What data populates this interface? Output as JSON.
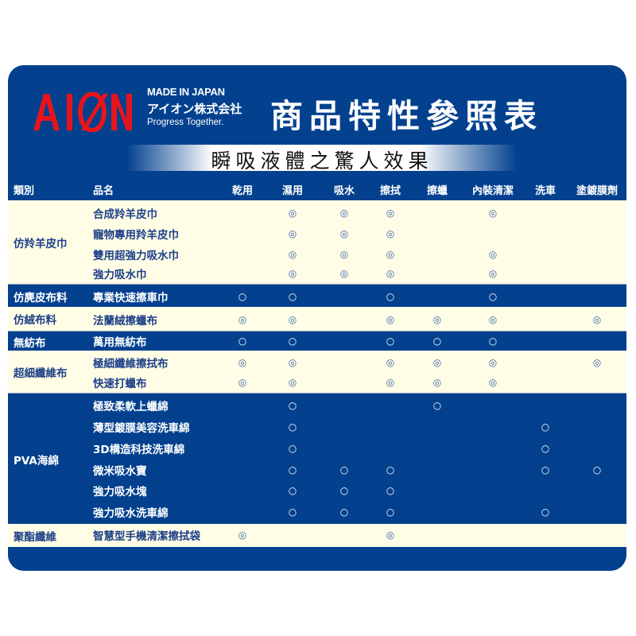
{
  "header": {
    "logo_text": "AION",
    "made_in": "MADE IN JAPAN",
    "company": "アイオン株式会社",
    "slogan": "Progress Together.",
    "title": "商品特性參照表",
    "subtitle": "瞬吸液體之驚人效果"
  },
  "colors": {
    "brand_red": "#e8141c",
    "panel_blue": "#03418f",
    "cream": "#fffde6"
  },
  "table": {
    "headers": {
      "category": "類別",
      "name": "品名",
      "features": [
        "乾用",
        "濕用",
        "吸水",
        "擦拭",
        "擦蠟",
        "內裝清潔",
        "洗車",
        "塗鍍膜劑"
      ]
    },
    "groups": [
      {
        "category": "仿羚羊皮巾",
        "rows": [
          {
            "name": "合成羚羊皮巾",
            "marks": [
              "",
              "◎",
              "◎",
              "◎",
              "",
              "◎",
              "",
              ""
            ]
          },
          {
            "name": "寵物專用羚羊皮巾",
            "marks": [
              "",
              "◎",
              "◎",
              "◎",
              "",
              "",
              "",
              ""
            ]
          },
          {
            "name": "雙用超強力吸水巾",
            "marks": [
              "",
              "◎",
              "◎",
              "◎",
              "",
              "◎",
              "",
              ""
            ]
          },
          {
            "name": "強力吸水巾",
            "marks": [
              "",
              "◎",
              "◎",
              "◎",
              "",
              "◎",
              "",
              ""
            ]
          }
        ]
      },
      {
        "category": "仿麂皮布料",
        "rows": [
          {
            "name": "專業快速擦車巾",
            "marks": [
              "○",
              "○",
              "",
              "○",
              "",
              "○",
              "",
              ""
            ]
          }
        ]
      },
      {
        "category": "仿絨布料",
        "rows": [
          {
            "name": "法蘭絨擦蠟布",
            "marks": [
              "◎",
              "◎",
              "",
              "◎",
              "◎",
              "◎",
              "",
              "◎"
            ]
          }
        ]
      },
      {
        "category": "無紡布",
        "rows": [
          {
            "name": "萬用無紡布",
            "marks": [
              "○",
              "○",
              "",
              "○",
              "○",
              "○",
              "",
              ""
            ]
          }
        ]
      },
      {
        "category": "超細纖維布",
        "rows": [
          {
            "name": "極細纖維擦拭布",
            "marks": [
              "◎",
              "◎",
              "",
              "◎",
              "◎",
              "◎",
              "",
              "◎"
            ]
          },
          {
            "name": "快速打蠟布",
            "marks": [
              "◎",
              "◎",
              "",
              "◎",
              "◎",
              "◎",
              "",
              ""
            ]
          }
        ]
      },
      {
        "category": "PVA海綿",
        "rows": [
          {
            "name": "極致柔軟上蠟綿",
            "marks": [
              "",
              "○",
              "",
              "",
              "○",
              "",
              "",
              ""
            ]
          },
          {
            "name": "薄型鍍膜美容洗車綿",
            "marks": [
              "",
              "○",
              "",
              "",
              "",
              "",
              "○",
              ""
            ]
          },
          {
            "name": "3D構造科技洗車綿",
            "marks": [
              "",
              "○",
              "",
              "",
              "",
              "",
              "○",
              ""
            ]
          },
          {
            "name": "微米吸水寶",
            "marks": [
              "",
              "○",
              "○",
              "○",
              "",
              "",
              "○",
              "○"
            ]
          },
          {
            "name": "強力吸水塊",
            "marks": [
              "",
              "○",
              "○",
              "○",
              "",
              "",
              "",
              ""
            ]
          },
          {
            "name": "強力吸水洗車綿",
            "marks": [
              "",
              "○",
              "○",
              "○",
              "",
              "",
              "○",
              ""
            ]
          }
        ]
      },
      {
        "category": "聚酯纖維",
        "rows": [
          {
            "name": "智慧型手機清潔擦拭袋",
            "marks": [
              "◎",
              "",
              "",
              "◎",
              "",
              "",
              "",
              ""
            ]
          }
        ]
      }
    ]
  }
}
